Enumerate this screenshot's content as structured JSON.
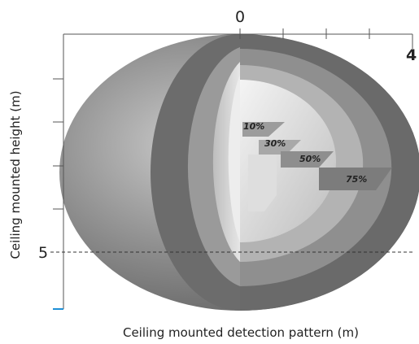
{
  "diagram": {
    "x_axis_label": "Ceiling mounted detection pattern (m)",
    "y_axis_label": "Ceiling mounted height (m)",
    "x_tick_labels": [
      "0",
      "4"
    ],
    "y_tick_labels": [
      "5"
    ],
    "zones": [
      {
        "label": "10%"
      },
      {
        "label": "30%"
      },
      {
        "label": "50%"
      },
      {
        "label": "75%"
      }
    ],
    "colors": {
      "outer": "#7a7a7a",
      "ring_dark": "#5e5e5e",
      "ring_mid": "#8f8f8f",
      "ring_light": "#b5b5b5",
      "core": "#d9d9d9",
      "axis": "#555555",
      "blue_tick": "#1e8fd6"
    }
  }
}
